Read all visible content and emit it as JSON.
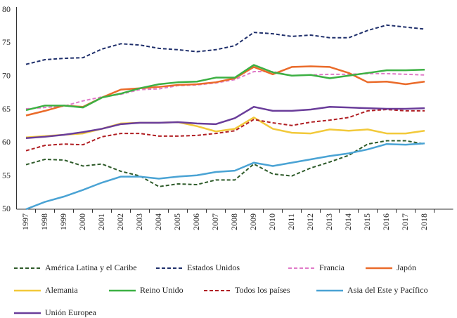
{
  "chart_data": {
    "type": "line",
    "x": [
      "1997",
      "1998",
      "1999",
      "2000",
      "2001",
      "2002",
      "2003",
      "2004",
      "2005",
      "2006",
      "2007",
      "2008",
      "2009",
      "2010",
      "2011",
      "2012",
      "2013",
      "2014",
      "2015",
      "2016",
      "2017",
      "2018"
    ],
    "ylim": [
      50,
      80
    ],
    "yticks": [
      50,
      55,
      60,
      65,
      70,
      75,
      80
    ],
    "series": [
      {
        "name": "América Latina y el Caribe",
        "color": "#2e5b2a",
        "dashed": true,
        "values": [
          56.7,
          57.5,
          57.4,
          56.5,
          56.8,
          55.7,
          55.0,
          53.4,
          53.8,
          53.7,
          54.4,
          54.4,
          56.8,
          55.3,
          55.0,
          56.2,
          57.1,
          58.1,
          59.8,
          60.3,
          60.3,
          59.8
        ]
      },
      {
        "name": "Estados Unidos",
        "color": "#1f2f6b",
        "dashed": true,
        "values": [
          71.8,
          72.5,
          72.7,
          72.8,
          74.1,
          74.9,
          74.7,
          74.2,
          74.0,
          73.7,
          74.0,
          74.6,
          76.6,
          76.4,
          76.0,
          76.2,
          75.8,
          75.8,
          76.9,
          77.7,
          77.4,
          77.1
        ]
      },
      {
        "name": "Francia",
        "color": "#e07ac8",
        "dashed": true,
        "values": [
          65.1,
          65.3,
          65.5,
          66.3,
          66.9,
          67.3,
          68.0,
          68.1,
          68.6,
          68.7,
          69.0,
          69.5,
          70.7,
          70.7,
          70.1,
          70.2,
          70.3,
          70.3,
          70.4,
          70.4,
          70.3,
          70.2
        ]
      },
      {
        "name": "Japón",
        "color": "#ea6b2a",
        "dashed": false,
        "values": [
          64.1,
          64.8,
          65.6,
          65.4,
          66.8,
          68.0,
          68.2,
          68.4,
          68.7,
          68.8,
          69.1,
          69.7,
          71.4,
          70.3,
          71.4,
          71.5,
          71.4,
          70.5,
          69.1,
          69.2,
          68.8,
          69.2
        ]
      },
      {
        "name": "Alemania",
        "color": "#f2c93a",
        "dashed": false,
        "values": [
          60.8,
          61.0,
          61.2,
          61.4,
          62.1,
          62.9,
          63.0,
          63.0,
          63.1,
          62.5,
          61.7,
          62.1,
          63.8,
          62.1,
          61.5,
          61.4,
          62.0,
          61.8,
          62.0,
          61.4,
          61.4,
          61.8
        ]
      },
      {
        "name": "Reino Unido",
        "color": "#3cb043",
        "dashed": false,
        "values": [
          64.9,
          65.6,
          65.6,
          65.3,
          66.8,
          67.4,
          68.2,
          68.8,
          69.1,
          69.2,
          69.8,
          69.8,
          71.7,
          70.6,
          70.1,
          70.2,
          69.7,
          70.1,
          70.5,
          70.9,
          70.9,
          71.0
        ]
      },
      {
        "name": "Todos los países",
        "color": "#b01e23",
        "dashed": true,
        "values": [
          58.8,
          59.6,
          59.8,
          59.7,
          60.9,
          61.4,
          61.4,
          61.0,
          61.0,
          61.1,
          61.4,
          61.8,
          63.5,
          63.0,
          62.6,
          63.1,
          63.4,
          63.8,
          64.8,
          65.0,
          64.8,
          64.8
        ]
      },
      {
        "name": "Asia del Este y Pacífico",
        "color": "#4aa3d4",
        "dashed": false,
        "values": [
          50.0,
          51.1,
          51.9,
          52.9,
          54.0,
          54.9,
          54.9,
          54.6,
          54.9,
          55.1,
          55.6,
          55.8,
          57.0,
          56.5,
          57.0,
          57.5,
          58.0,
          58.4,
          59.0,
          59.8,
          59.7,
          59.9
        ]
      },
      {
        "name": "Unión Europea",
        "color": "#6a3d9a",
        "dashed": false,
        "values": [
          60.7,
          60.9,
          61.2,
          61.6,
          62.1,
          62.8,
          63.0,
          63.0,
          63.1,
          62.9,
          62.8,
          63.7,
          65.4,
          64.8,
          64.8,
          65.0,
          65.4,
          65.3,
          65.2,
          65.1,
          65.1,
          65.2
        ]
      }
    ]
  }
}
